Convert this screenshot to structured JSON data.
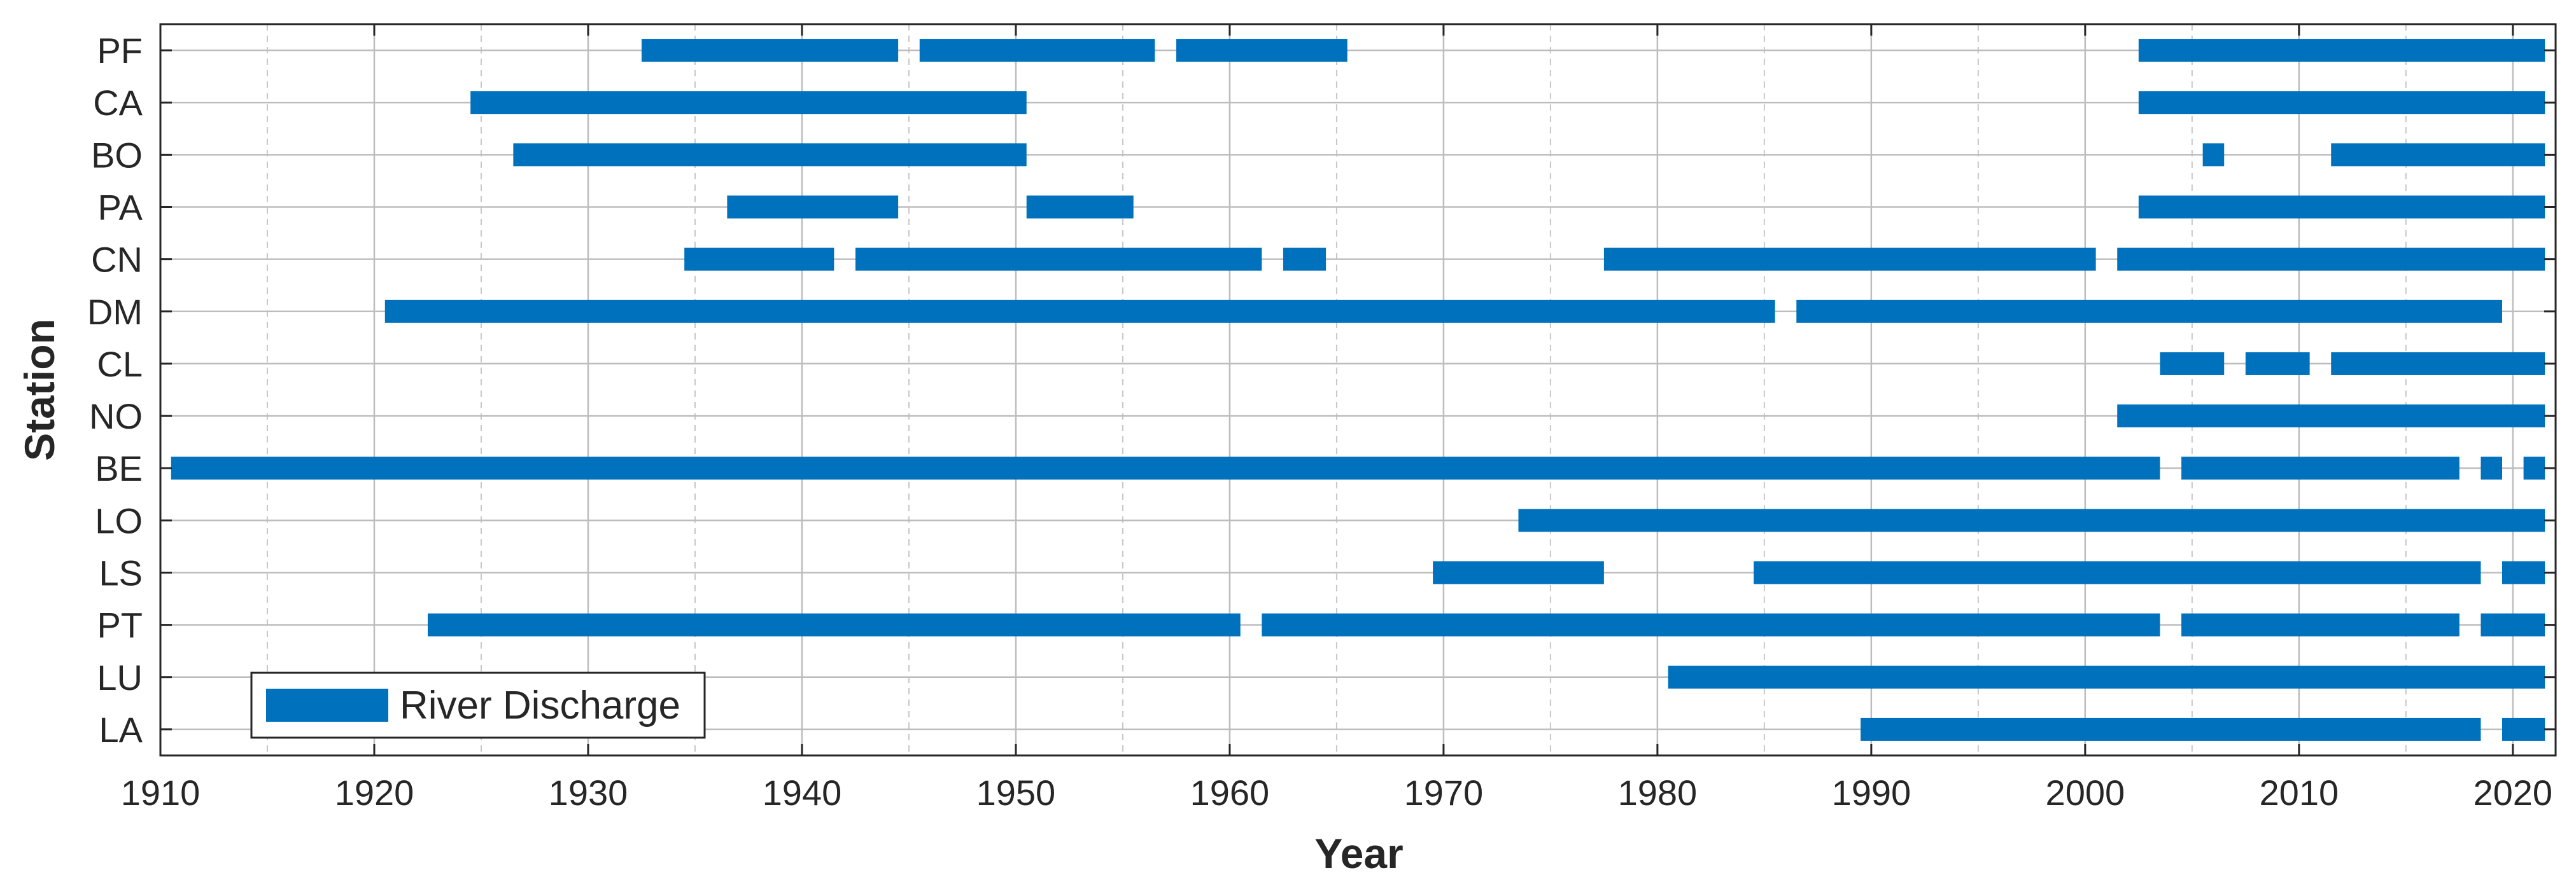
{
  "chart_data": {
    "type": "bar",
    "orientation": "horizontal",
    "xlabel": "Year",
    "ylabel": "Station",
    "xlim": [
      1910,
      2022
    ],
    "xticks": [
      1910,
      1920,
      1930,
      1940,
      1950,
      1960,
      1970,
      1980,
      1990,
      2000,
      2010,
      2020
    ],
    "grid": true,
    "minor_grid": true,
    "legend": {
      "placement": "bottom-left",
      "entries": [
        "River Discharge"
      ]
    },
    "color": "#0072BD",
    "stations": [
      {
        "name": "PF",
        "intervals": [
          [
            1932.5,
            1944.5
          ],
          [
            1945.5,
            1956.5
          ],
          [
            1957.5,
            1965.5
          ],
          [
            2002.5,
            2021.5
          ]
        ]
      },
      {
        "name": "CA",
        "intervals": [
          [
            1924.5,
            1950.5
          ],
          [
            2002.5,
            2021.5
          ]
        ]
      },
      {
        "name": "BO",
        "intervals": [
          [
            1926.5,
            1950.5
          ],
          [
            2005.5,
            2006.5
          ],
          [
            2011.5,
            2021.5
          ]
        ]
      },
      {
        "name": "PA",
        "intervals": [
          [
            1936.5,
            1944.5
          ],
          [
            1950.5,
            1955.5
          ],
          [
            2002.5,
            2021.5
          ]
        ]
      },
      {
        "name": "CN",
        "intervals": [
          [
            1934.5,
            1941.5
          ],
          [
            1942.5,
            1961.5
          ],
          [
            1962.5,
            1964.5
          ],
          [
            1977.5,
            2000.5
          ],
          [
            2001.5,
            2021.5
          ]
        ]
      },
      {
        "name": "DM",
        "intervals": [
          [
            1920.5,
            1985.5
          ],
          [
            1986.5,
            2019.5
          ]
        ]
      },
      {
        "name": "CL",
        "intervals": [
          [
            2003.5,
            2006.5
          ],
          [
            2007.5,
            2010.5
          ],
          [
            2011.5,
            2021.5
          ]
        ]
      },
      {
        "name": "NO",
        "intervals": [
          [
            2001.5,
            2021.5
          ]
        ]
      },
      {
        "name": "BE",
        "intervals": [
          [
            1910.5,
            2003.5
          ],
          [
            2004.5,
            2017.5
          ],
          [
            2018.5,
            2019.5
          ],
          [
            2020.5,
            2021.5
          ]
        ]
      },
      {
        "name": "LO",
        "intervals": [
          [
            1973.5,
            2021.5
          ]
        ]
      },
      {
        "name": "LS",
        "intervals": [
          [
            1969.5,
            1977.5
          ],
          [
            1984.5,
            2018.5
          ],
          [
            2019.5,
            2021.5
          ]
        ]
      },
      {
        "name": "PT",
        "intervals": [
          [
            1922.5,
            1960.5
          ],
          [
            1961.5,
            2003.5
          ],
          [
            2004.5,
            2017.5
          ],
          [
            2018.5,
            2021.5
          ]
        ]
      },
      {
        "name": "LU",
        "intervals": [
          [
            1980.5,
            2021.5
          ]
        ]
      },
      {
        "name": "LA",
        "intervals": [
          [
            1989.5,
            2018.5
          ],
          [
            2019.5,
            2021.5
          ]
        ]
      }
    ]
  }
}
